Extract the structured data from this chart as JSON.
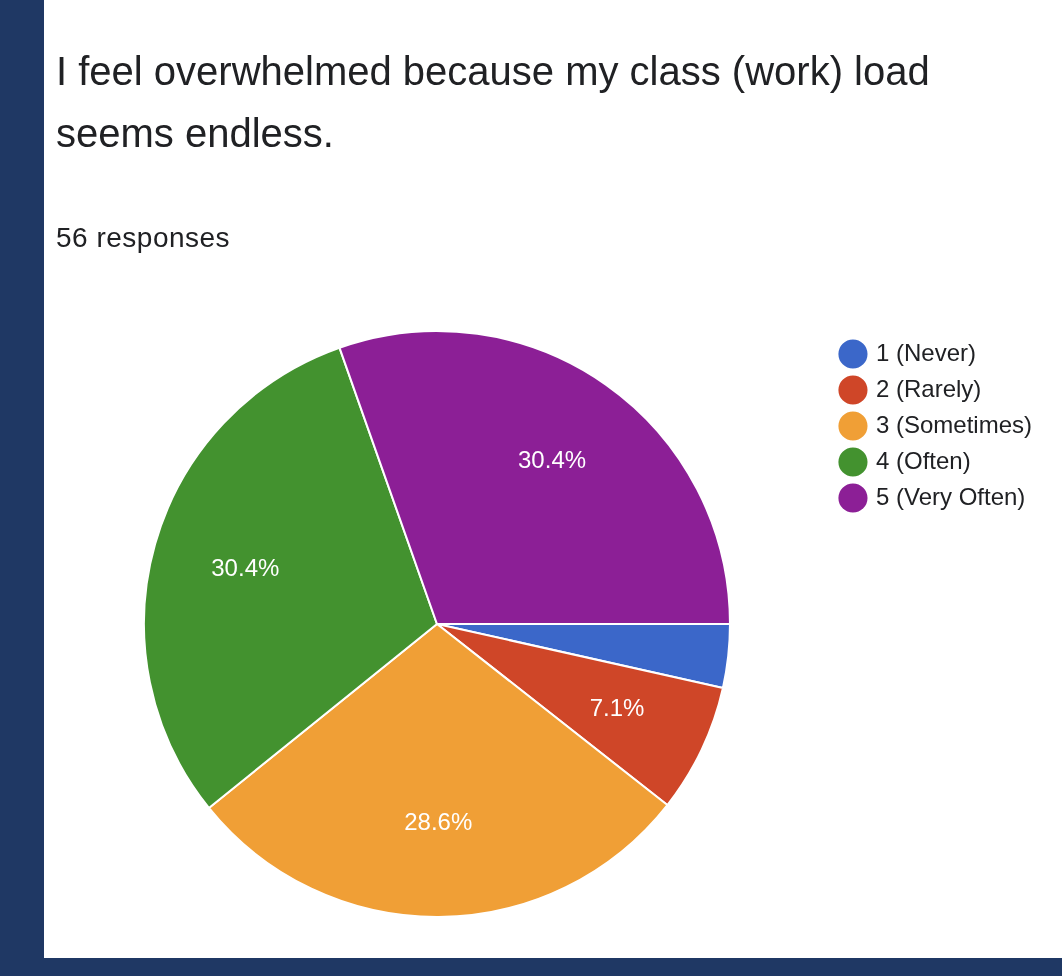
{
  "chart_data": {
    "type": "pie",
    "title": "I feel overwhelmed because my class (work) load seems endless.",
    "subtitle": "56 responses",
    "categories": [
      "1 (Never)",
      "2 (Rarely)",
      "3 (Sometimes)",
      "4 (Often)",
      "5 (Very Often)"
    ],
    "values": [
      3.5,
      7.1,
      28.6,
      30.4,
      30.4
    ],
    "value_labels": [
      null,
      "7.1%",
      "28.6%",
      "30.4%",
      "30.4%"
    ],
    "colors": [
      "#3b67c9",
      "#cf4628",
      "#f09f36",
      "#43922f",
      "#8c1f96"
    ],
    "legend": "right"
  }
}
